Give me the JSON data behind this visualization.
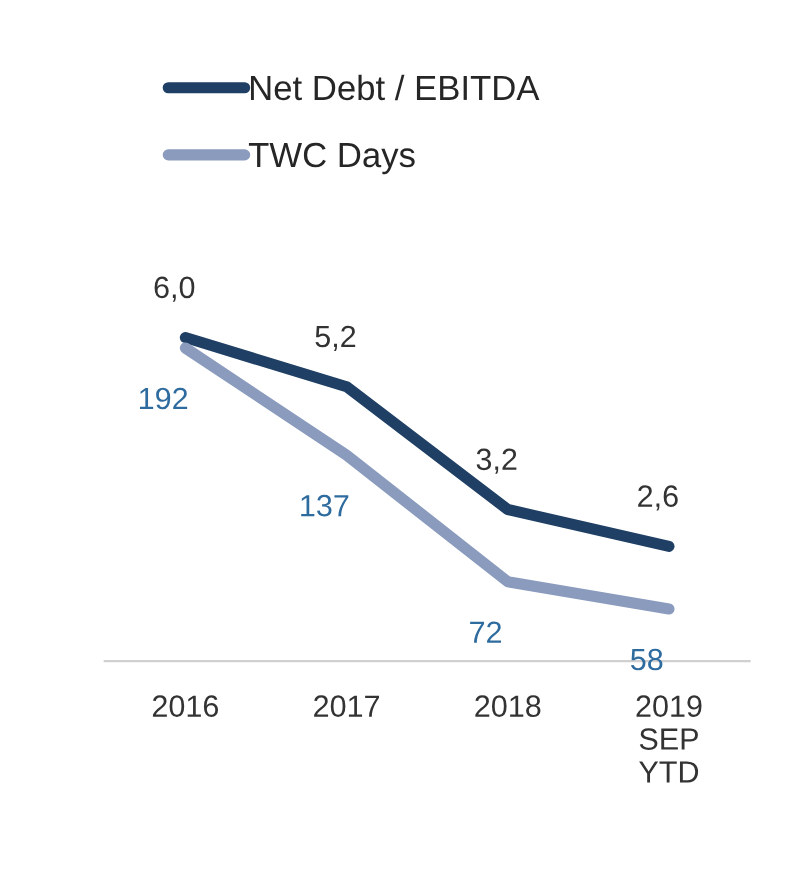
{
  "chart_data": {
    "type": "line",
    "categories": [
      "2016",
      "2017",
      "2018",
      "2019\nSEP\nYTD"
    ],
    "series": [
      {
        "name": "Net Debt / EBITDA",
        "color": "#1f3f64",
        "values": [
          6.0,
          5.2,
          3.2,
          2.6
        ],
        "value_labels": [
          "6,0",
          "5,2",
          "3,2",
          "2,6"
        ]
      },
      {
        "name": "TWC Days",
        "color": "#8a9bbd",
        "axis": "y2",
        "values": [
          192,
          137,
          72,
          58
        ],
        "value_labels": [
          "192",
          "137",
          "72",
          "58"
        ]
      }
    ],
    "tick_labels": "x",
    "legend": "top",
    "grid": false,
    "marker": "none",
    "line_style": "solid"
  }
}
